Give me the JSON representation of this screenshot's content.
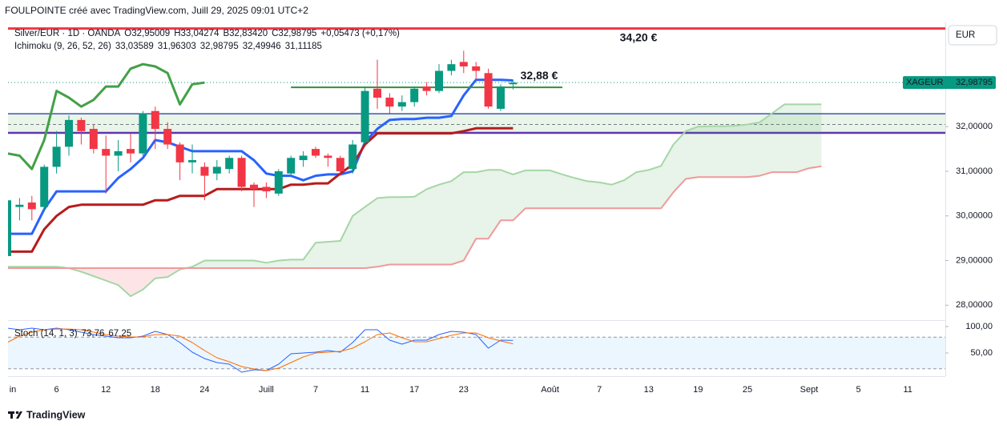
{
  "header": {
    "title": "FOULPOINTE créé avec TradingView.com, Juill 29, 2025 09:01 UTC+2",
    "currency": "EUR",
    "brand": "TradingView"
  },
  "chart_data": [
    {
      "type": "candlestick",
      "title": "Silver/EUR · 1D · OANDA",
      "legend_values": [
        "O32,95009",
        "H33,04274",
        "B32,83420",
        "C32,98795",
        "+0,05473 (+0,17%)"
      ],
      "legend_color": "#089981",
      "indicator": "Ichimoku (9, 26, 52, 26)",
      "categories": [
        "in",
        null,
        null,
        null,
        "6",
        null,
        null,
        null,
        "12",
        null,
        null,
        null,
        "18",
        null,
        null,
        null,
        "24",
        null,
        null,
        null,
        null,
        "Juill",
        null,
        null,
        null,
        "7",
        null,
        null,
        null,
        "11",
        null,
        null,
        null,
        "17",
        null,
        null,
        null,
        "23",
        null,
        null,
        null,
        null,
        null,
        null,
        "Août",
        null,
        null,
        null,
        "7",
        null,
        null,
        null,
        "13",
        null,
        null,
        null,
        "19",
        null,
        null,
        null,
        "25",
        null,
        null,
        null,
        null,
        "Sept",
        null,
        null,
        null,
        "5",
        null,
        null,
        null,
        "11",
        null,
        null,
        null
      ],
      "open": [
        29.1,
        30.2,
        30.3,
        30.2,
        31.1,
        31.55,
        32.15,
        31.95,
        31.5,
        31.35,
        31.5,
        31.4,
        32.35,
        31.95,
        31.6,
        31.2,
        31.1,
        30.95,
        31.05,
        31.3,
        30.7,
        30.65,
        30.5,
        30.95,
        31.25,
        31.5,
        31.35,
        31.3,
        31.05,
        31.65,
        32.85,
        32.65,
        32.45,
        32.55,
        32.9,
        32.8,
        33.25,
        33.45,
        33.35,
        33.2,
        32.4,
        32.95009,
        null,
        null,
        null,
        null,
        null,
        null,
        null,
        null,
        null,
        null,
        null,
        null,
        null,
        null,
        null,
        null,
        null,
        null,
        null,
        null,
        null,
        null,
        null,
        null,
        null,
        null,
        null,
        null,
        null,
        null,
        null,
        null,
        null,
        null,
        null
      ],
      "high": [
        30.35,
        30.4,
        30.45,
        31.15,
        31.9,
        32.25,
        32.2,
        32.05,
        31.8,
        31.7,
        31.85,
        32.35,
        32.45,
        32.1,
        31.65,
        31.6,
        31.2,
        31.25,
        31.35,
        31.35,
        30.75,
        30.75,
        31.05,
        31.35,
        31.45,
        31.55,
        31.4,
        31.35,
        31.7,
        32.9,
        33.5,
        32.75,
        32.7,
        32.9,
        33.0,
        33.4,
        33.5,
        33.7,
        33.45,
        33.3,
        32.95,
        33.04274,
        null,
        null,
        null,
        null,
        null,
        null,
        null,
        null,
        null,
        null,
        null,
        null,
        null,
        null,
        null,
        null,
        null,
        null,
        null,
        null,
        null,
        null,
        null,
        null,
        null,
        null,
        null,
        null,
        null,
        null,
        null,
        null,
        null,
        null,
        null
      ],
      "low": [
        28.9,
        29.9,
        29.9,
        30.1,
        30.95,
        31.35,
        31.6,
        31.4,
        30.5,
        31.0,
        31.2,
        31.35,
        31.5,
        31.5,
        30.8,
        30.95,
        30.35,
        30.8,
        30.95,
        30.55,
        30.2,
        30.4,
        30.45,
        30.9,
        31.1,
        31.3,
        31.1,
        30.9,
        30.95,
        31.6,
        32.4,
        32.3,
        32.35,
        32.45,
        32.7,
        32.75,
        33.15,
        33.2,
        33.05,
        32.4,
        32.35,
        32.8342,
        null,
        null,
        null,
        null,
        null,
        null,
        null,
        null,
        null,
        null,
        null,
        null,
        null,
        null,
        null,
        null,
        null,
        null,
        null,
        null,
        null,
        null,
        null,
        null,
        null,
        null,
        null,
        null,
        null,
        null,
        null,
        null,
        null,
        null,
        null
      ],
      "close": [
        30.35,
        30.25,
        30.15,
        31.1,
        31.55,
        32.15,
        31.9,
        31.5,
        31.35,
        31.45,
        31.4,
        32.3,
        31.95,
        31.6,
        31.2,
        31.25,
        30.9,
        31.1,
        31.3,
        30.65,
        30.6,
        30.55,
        31.0,
        31.3,
        31.35,
        31.35,
        31.3,
        31.0,
        31.6,
        32.8,
        32.65,
        32.45,
        32.55,
        32.85,
        32.8,
        33.25,
        33.4,
        33.35,
        33.25,
        32.45,
        32.9,
        32.98795,
        null,
        null,
        null,
        null,
        null,
        null,
        null,
        null,
        null,
        null,
        null,
        null,
        null,
        null,
        null,
        null,
        null,
        null,
        null,
        null,
        null,
        null,
        null,
        null,
        null,
        null,
        null,
        null,
        null,
        null,
        null,
        null,
        null,
        null,
        null
      ],
      "up_color": "#089981",
      "down_color": "#f23645",
      "series": [
        {
          "color": "#2962ff",
          "width": 3,
          "value_label": "33,03589",
          "values": [
            29.6,
            29.6,
            29.6,
            30.15,
            30.55,
            30.55,
            30.55,
            30.55,
            30.55,
            30.85,
            31.05,
            31.3,
            31.7,
            31.65,
            31.55,
            31.45,
            31.45,
            31.45,
            31.45,
            31.45,
            31.25,
            30.95,
            30.9,
            30.9,
            30.8,
            30.9,
            30.93,
            30.93,
            31.0,
            31.65,
            31.95,
            32.15,
            32.17,
            32.17,
            32.2,
            32.2,
            32.24,
            32.7,
            33.05,
            33.05,
            33.05,
            33.03589,
            null,
            null,
            null,
            null,
            null,
            null,
            null,
            null,
            null,
            null,
            null,
            null,
            null,
            null,
            null,
            null,
            null,
            null,
            null,
            null,
            null,
            null,
            null,
            null,
            null,
            null,
            null,
            null,
            null,
            null,
            null,
            null,
            null,
            null,
            null
          ]
        },
        {
          "color": "#b71c1c",
          "width": 3,
          "value_label": "31,96303",
          "values": [
            29.2,
            29.2,
            29.2,
            29.7,
            30.0,
            30.2,
            30.25,
            30.25,
            30.25,
            30.25,
            30.25,
            30.25,
            30.35,
            30.35,
            30.45,
            30.45,
            30.45,
            30.6,
            30.6,
            30.6,
            30.6,
            30.6,
            30.6,
            30.7,
            30.7,
            30.73,
            30.73,
            30.95,
            31.15,
            31.6,
            31.85,
            31.85,
            31.85,
            31.85,
            31.85,
            31.85,
            31.85,
            31.9,
            31.96303,
            31.96303,
            31.96303,
            31.96303,
            null,
            null,
            null,
            null,
            null,
            null,
            null,
            null,
            null,
            null,
            null,
            null,
            null,
            null,
            null,
            null,
            null,
            null,
            null,
            null,
            null,
            null,
            null,
            null,
            null,
            null,
            null,
            null,
            null,
            null,
            null,
            null,
            null,
            null,
            null
          ]
        },
        {
          "color": "#43a047",
          "width": 3,
          "value_label": "32,98795",
          "values": [
            31.4,
            31.35,
            31.05,
            31.7,
            32.8,
            32.65,
            32.45,
            32.6,
            32.9,
            32.9,
            33.3,
            33.4,
            33.35,
            33.2,
            32.5,
            32.95,
            32.98795,
            null,
            null,
            null,
            null,
            null,
            null,
            null,
            null,
            null,
            null,
            null,
            null,
            null,
            null,
            null,
            null,
            null,
            null,
            null,
            null,
            null,
            null,
            null,
            null,
            null,
            null,
            null,
            null,
            null,
            null,
            null,
            null,
            null,
            null,
            null,
            null,
            null,
            null,
            null,
            null,
            null,
            null,
            null,
            null,
            null,
            null,
            null,
            null,
            null,
            null,
            null,
            null,
            null,
            null,
            null,
            null,
            null,
            null,
            null,
            null
          ]
        },
        {
          "color": "#a5d6a7",
          "width": 2,
          "fill": "rgba(67,160,71,0.12)",
          "value_label": "32,49946",
          "values": [
            28.86,
            28.86,
            28.86,
            28.86,
            28.86,
            28.83,
            28.75,
            28.65,
            28.55,
            28.45,
            28.2,
            28.35,
            28.6,
            28.63,
            28.8,
            28.86,
            29.0,
            29.0,
            29.0,
            29.0,
            29.0,
            28.95,
            29.0,
            29.02,
            29.02,
            29.4,
            29.42,
            29.44,
            30.0,
            30.2,
            30.4,
            30.42,
            30.42,
            30.43,
            30.6,
            30.7,
            30.78,
            30.98,
            30.98,
            31.03,
            31.03,
            30.93,
            31.02,
            31.02,
            31.02,
            30.93,
            30.85,
            30.78,
            30.75,
            30.7,
            30.8,
            30.98,
            31.03,
            31.12,
            31.6,
            31.9,
            32.0,
            32.01,
            32.01,
            32.02,
            32.05,
            32.1,
            32.3,
            32.5,
            32.5,
            32.5,
            32.49946,
            null,
            null,
            null,
            null,
            null,
            null,
            null,
            null,
            null,
            null
          ]
        },
        {
          "color": "#ef9a9a",
          "width": 2,
          "fill": "rgba(242,54,69,0.13)",
          "value_label": "31,11185",
          "values": [
            28.83,
            28.83,
            28.83,
            28.83,
            28.83,
            28.83,
            28.83,
            28.83,
            28.83,
            28.83,
            28.83,
            28.83,
            28.83,
            28.83,
            28.83,
            28.83,
            28.83,
            28.83,
            28.83,
            28.83,
            28.83,
            28.83,
            28.83,
            28.83,
            28.83,
            28.83,
            28.83,
            28.83,
            28.83,
            28.83,
            28.86,
            28.91,
            28.91,
            28.91,
            28.91,
            28.91,
            28.91,
            29.0,
            29.49,
            29.49,
            29.9,
            29.9,
            30.17,
            30.17,
            30.17,
            30.17,
            30.17,
            30.17,
            30.17,
            30.17,
            30.17,
            30.17,
            30.17,
            30.17,
            30.53,
            30.83,
            30.87,
            30.87,
            30.87,
            30.87,
            30.87,
            30.9,
            30.98,
            30.98,
            30.98,
            31.07,
            31.11185,
            null,
            null,
            null,
            null,
            null,
            null,
            null,
            null,
            null,
            null
          ]
        }
      ],
      "ylim": [
        27.7,
        34.3
      ],
      "yticks": [
        {
          "value": 28,
          "label": "28,00000"
        },
        {
          "value": 29,
          "label": "29,00000"
        },
        {
          "value": 30,
          "label": "30,00000"
        },
        {
          "value": 31,
          "label": "31,00000"
        },
        {
          "value": 32,
          "label": "32,00000"
        }
      ],
      "grid": false,
      "zone": {
        "top": 32.29,
        "bottom": 31.86,
        "mid": 32.05,
        "fill": "rgba(76,175,80,0.13)",
        "top_color": "#3f51b5",
        "bottom_color": "#5e35b1",
        "mid_color": "#787b86"
      },
      "levels": [
        {
          "value": 34.2,
          "label": "34,20 €",
          "color": "#f23645"
        },
        {
          "value": 32.88,
          "label": "32,88 €",
          "color": "#388e3c"
        }
      ],
      "last_price": {
        "name": "XAGEUR",
        "value": 32.98795,
        "label": "32,98795",
        "color": "#089981"
      }
    },
    {
      "type": "line",
      "title": "Stoch (14, 1, 3)",
      "series": [
        {
          "color": "#2962ff",
          "width": 1,
          "value_label": "73,76",
          "values": [
            97.0,
            93.9,
            97.0,
            93.9,
            97.0,
            93.9,
            89.4,
            84.8,
            81.8,
            78.8,
            78.8,
            81.8,
            90.9,
            84.8,
            69.7,
            51.5,
            39.4,
            31.8,
            28.8,
            13.6,
            18.2,
            16.7,
            28.8,
            48.5,
            50.0,
            51.5,
            54.5,
            51.5,
            69.7,
            93.9,
            93.9,
            74.2,
            66.7,
            74.2,
            74.2,
            84.8,
            90.9,
            89.4,
            84.8,
            59.1,
            74.2,
            73.76
          ]
        },
        {
          "color": "#ff6d00",
          "width": 1,
          "value_label": "67,25",
          "values": [
            69.7,
            81.8,
            89.4,
            93.9,
            95.4,
            95.4,
            93.9,
            89.4,
            84.8,
            81.8,
            80.3,
            80.3,
            84.8,
            84.8,
            81.8,
            69.7,
            54.5,
            40.9,
            33.3,
            24.2,
            19.7,
            16.7,
            21.2,
            31.8,
            42.4,
            50.0,
            51.5,
            53.0,
            59.1,
            71.2,
            84.8,
            87.9,
            78.8,
            71.2,
            71.2,
            77.3,
            83.3,
            87.9,
            87.9,
            78.8,
            72.7,
            67.25
          ]
        }
      ],
      "ylim": [
        0,
        107.6
      ],
      "yticks": [
        {
          "value": 50,
          "label": "50,00"
        },
        {
          "value": 100,
          "label": "100,00"
        }
      ],
      "bands": [
        20,
        80
      ],
      "band_fill": "rgba(33,150,243,0.09)",
      "band_color": "#9598a1"
    }
  ]
}
